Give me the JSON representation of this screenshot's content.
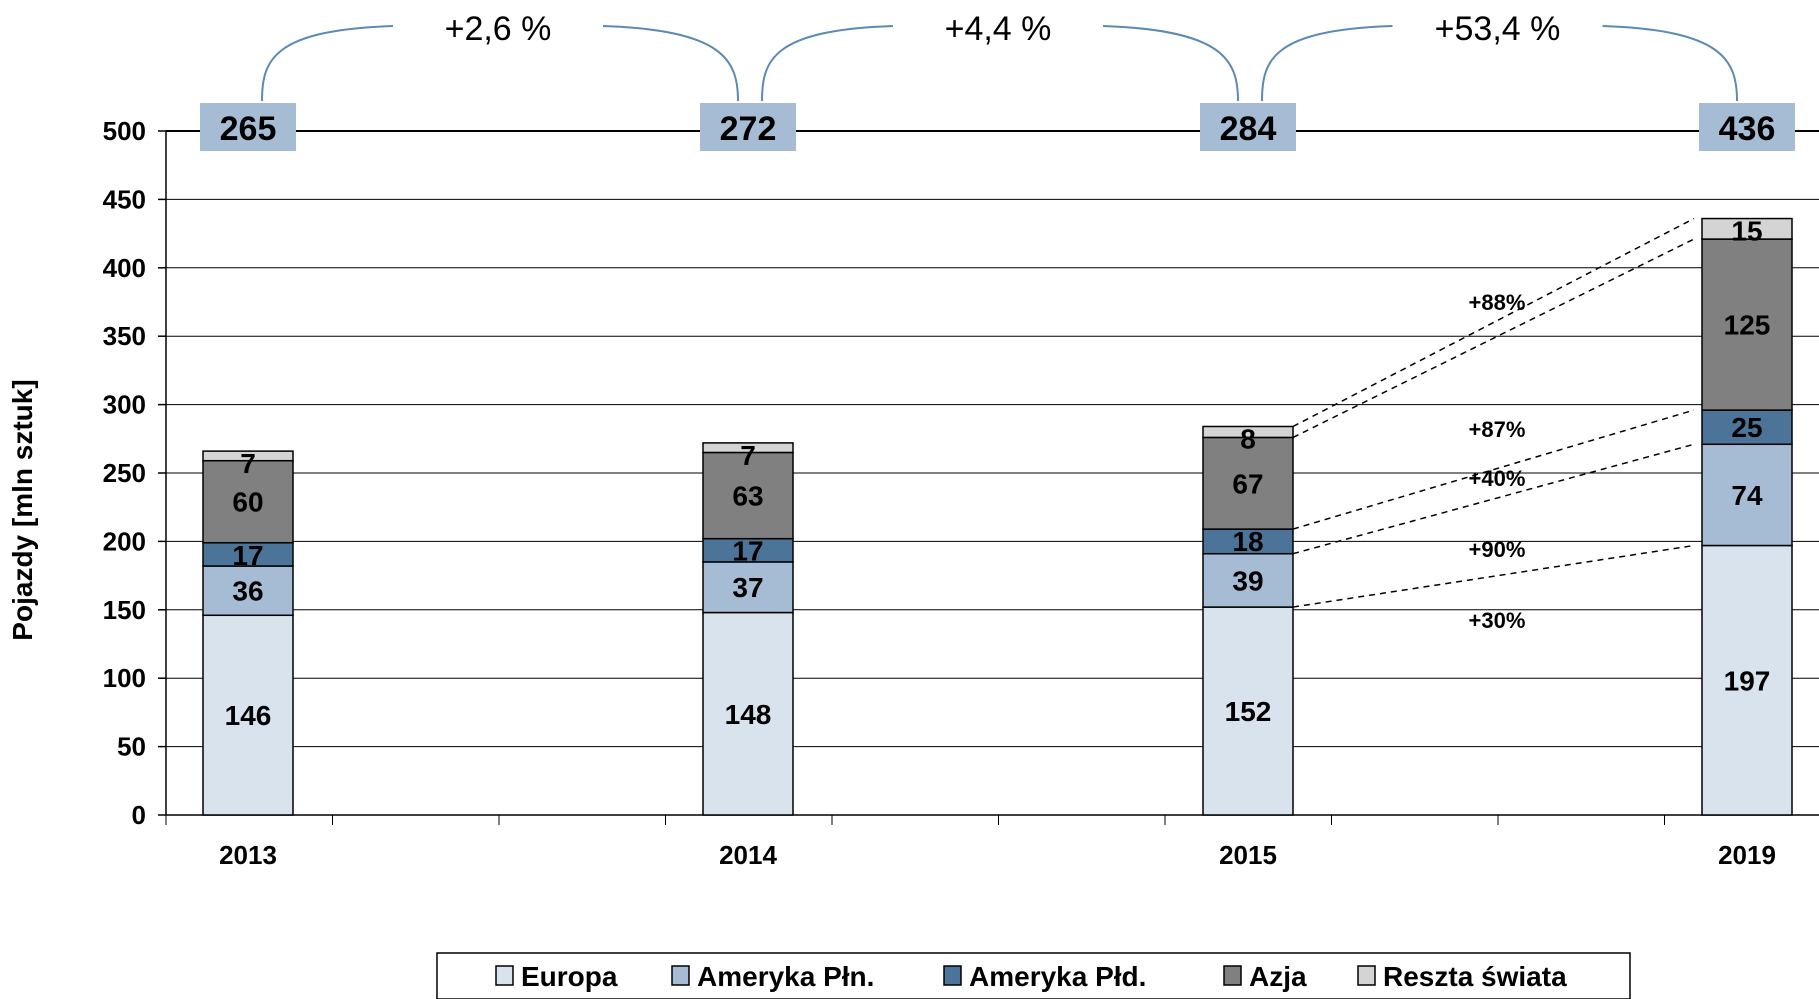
{
  "chart_data": {
    "type": "bar",
    "stacked": true,
    "categories": [
      "2013",
      "2014",
      "2015",
      "2019"
    ],
    "ylabel": "Pojazdy [mln sztuk]",
    "ylim": [
      0,
      500
    ],
    "yticks": [
      0,
      50,
      100,
      150,
      200,
      250,
      300,
      350,
      400,
      450,
      500
    ],
    "grid": true,
    "legend_position": "bottom",
    "series": [
      {
        "name": "Europa",
        "color": "#d9e3ee",
        "values": [
          146,
          148,
          152,
          197
        ],
        "labels": [
          "146",
          "148",
          "152",
          "197"
        ]
      },
      {
        "name": "Ameryka Płn.",
        "color": "#a6bcd4",
        "values": [
          36,
          37,
          39,
          74
        ],
        "labels": [
          "36",
          "37",
          "39",
          "74"
        ]
      },
      {
        "name": "Ameryka Płd.",
        "color": "#4c7499",
        "values": [
          17,
          17,
          18,
          25
        ],
        "labels": [
          "17",
          "17",
          "18",
          "25"
        ]
      },
      {
        "name": "Azja",
        "color": "#808080",
        "values": [
          60,
          63,
          67,
          125
        ],
        "labels": [
          "60",
          "63",
          "67",
          "125"
        ]
      },
      {
        "name": "Reszta świata",
        "color": "#d4d4d4",
        "values": [
          7,
          7,
          8,
          15
        ],
        "labels": [
          "7",
          "7",
          "8",
          "15"
        ]
      }
    ],
    "totals": [
      "265",
      "272",
      "284",
      "436"
    ],
    "total_box_color": "#a6bcd4",
    "growth": [
      {
        "from": 0,
        "to": 1,
        "label": "+2,6 %"
      },
      {
        "from": 1,
        "to": 2,
        "label": "+4,4 %"
      },
      {
        "from": 2,
        "to": 3,
        "label": "+53,4 %"
      }
    ],
    "arc_color": "#5b8ab5",
    "segment_growth": [
      {
        "series": "Reszta świata",
        "label": "+88%"
      },
      {
        "series": "Azja",
        "label": "+87%"
      },
      {
        "series": "Ameryka Płd.",
        "label": "+40%"
      },
      {
        "series": "Ameryka Płn.",
        "label": "+90%"
      },
      {
        "series": "Europa",
        "label": "+30%"
      }
    ]
  }
}
